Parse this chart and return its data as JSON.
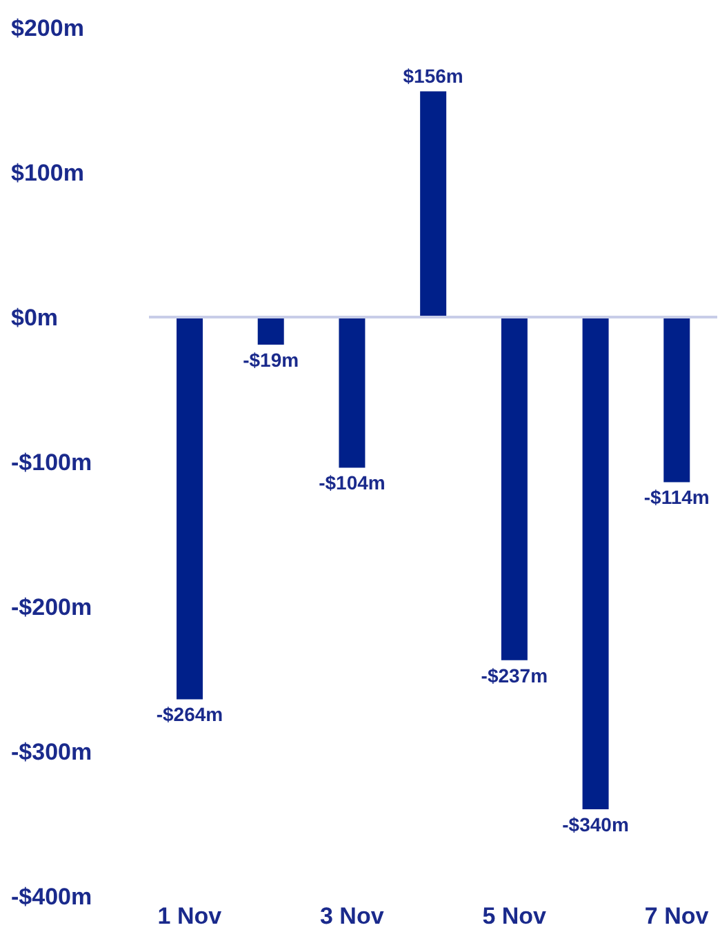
{
  "chart_data": {
    "type": "bar",
    "categories": [
      "1 Nov",
      null,
      "3 Nov",
      null,
      "5 Nov",
      null,
      "7 Nov"
    ],
    "values": [
      -264,
      -19,
      -104,
      156,
      -237,
      -340,
      -114
    ],
    "value_labels": [
      "-$264m",
      "-$19m",
      "-$104m",
      "$156m",
      "-$237m",
      "-$340m",
      "-$114m"
    ],
    "color": "#00208a",
    "ylim": [
      -400,
      200
    ],
    "yticks": [
      {
        "value": 200,
        "label": "$200m"
      },
      {
        "value": 100,
        "label": "$100m"
      },
      {
        "value": 0,
        "label": "$0m"
      },
      {
        "value": -100,
        "label": "-$100m"
      },
      {
        "value": -200,
        "label": "-$200m"
      },
      {
        "value": -300,
        "label": "-$300m"
      },
      {
        "value": -400,
        "label": "-$400m"
      }
    ],
    "ref_lines": [
      {
        "axis": "y",
        "value": 0,
        "color": "#c8cde8"
      }
    ],
    "legend": false
  }
}
